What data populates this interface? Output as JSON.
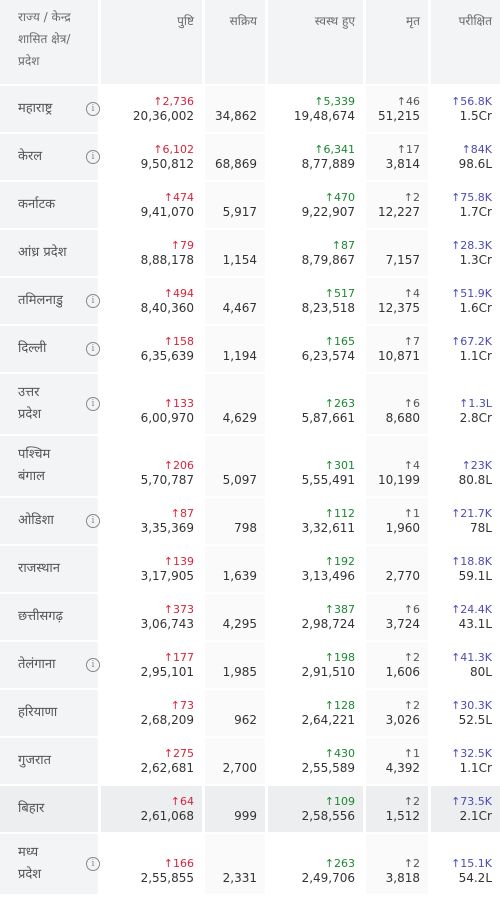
{
  "headers": {
    "state": [
      "राज्य / केन्द्र",
      "शासित क्षेत्र/",
      "प्रदेश"
    ],
    "confirmed": "पुष्टि",
    "active": "सक्रिय",
    "recovered": "स्वस्थ हुए",
    "deceased": "मृत",
    "tested": "परीक्षित"
  },
  "rows": [
    {
      "state": [
        "महाराष्ट्र"
      ],
      "info": true,
      "conf_delta": "↑2,736",
      "conf": "20,36,002",
      "active": "34,862",
      "rec_delta": "↑5,339",
      "rec": "19,48,674",
      "dec_delta": "↑46",
      "dec": "51,215",
      "test_delta": "↑56.8K",
      "test": "1.5Cr"
    },
    {
      "state": [
        "केरल"
      ],
      "info": true,
      "conf_delta": "↑6,102",
      "conf": "9,50,812",
      "active": "68,869",
      "rec_delta": "↑6,341",
      "rec": "8,77,889",
      "dec_delta": "↑17",
      "dec": "3,814",
      "test_delta": "↑84K",
      "test": "98.6L"
    },
    {
      "state": [
        "कर्नाटक"
      ],
      "info": false,
      "conf_delta": "↑474",
      "conf": "9,41,070",
      "active": "5,917",
      "rec_delta": "↑470",
      "rec": "9,22,907",
      "dec_delta": "↑2",
      "dec": "12,227",
      "test_delta": "↑75.8K",
      "test": "1.7Cr"
    },
    {
      "state": [
        "आंध्र प्रदेश"
      ],
      "info": false,
      "conf_delta": "↑79",
      "conf": "8,88,178",
      "active": "1,154",
      "rec_delta": "↑87",
      "rec": "8,79,867",
      "dec_delta": "",
      "dec": "7,157",
      "test_delta": "↑28.3K",
      "test": "1.3Cr"
    },
    {
      "state": [
        "तमिलनाडु"
      ],
      "info": true,
      "conf_delta": "↑494",
      "conf": "8,40,360",
      "active": "4,467",
      "rec_delta": "↑517",
      "rec": "8,23,518",
      "dec_delta": "↑4",
      "dec": "12,375",
      "test_delta": "↑51.9K",
      "test": "1.6Cr"
    },
    {
      "state": [
        "दिल्ली"
      ],
      "info": true,
      "conf_delta": "↑158",
      "conf": "6,35,639",
      "active": "1,194",
      "rec_delta": "↑165",
      "rec": "6,23,574",
      "dec_delta": "↑7",
      "dec": "10,871",
      "test_delta": "↑67.2K",
      "test": "1.1Cr"
    },
    {
      "state": [
        "उत्तर",
        "प्रदेश"
      ],
      "info": true,
      "conf_delta": "↑133",
      "conf": "6,00,970",
      "active": "4,629",
      "rec_delta": "↑263",
      "rec": "5,87,661",
      "dec_delta": "↑6",
      "dec": "8,680",
      "test_delta": "↑1.3L",
      "test": "2.8Cr"
    },
    {
      "state": [
        "पश्चिम",
        "बंगाल"
      ],
      "info": false,
      "conf_delta": "↑206",
      "conf": "5,70,787",
      "active": "5,097",
      "rec_delta": "↑301",
      "rec": "5,55,491",
      "dec_delta": "↑4",
      "dec": "10,199",
      "test_delta": "↑23K",
      "test": "80.8L"
    },
    {
      "state": [
        "ओडिशा"
      ],
      "info": true,
      "conf_delta": "↑87",
      "conf": "3,35,369",
      "active": "798",
      "rec_delta": "↑112",
      "rec": "3,32,611",
      "dec_delta": "↑1",
      "dec": "1,960",
      "test_delta": "↑21.7K",
      "test": "78L"
    },
    {
      "state": [
        "राजस्थान"
      ],
      "info": false,
      "conf_delta": "↑139",
      "conf": "3,17,905",
      "active": "1,639",
      "rec_delta": "↑192",
      "rec": "3,13,496",
      "dec_delta": "",
      "dec": "2,770",
      "test_delta": "↑18.8K",
      "test": "59.1L"
    },
    {
      "state": [
        "छत्तीसगढ़"
      ],
      "info": false,
      "conf_delta": "↑373",
      "conf": "3,06,743",
      "active": "4,295",
      "rec_delta": "↑387",
      "rec": "2,98,724",
      "dec_delta": "↑6",
      "dec": "3,724",
      "test_delta": "↑24.4K",
      "test": "43.1L"
    },
    {
      "state": [
        "तेलंगाना"
      ],
      "info": true,
      "conf_delta": "↑177",
      "conf": "2,95,101",
      "active": "1,985",
      "rec_delta": "↑198",
      "rec": "2,91,510",
      "dec_delta": "↑2",
      "dec": "1,606",
      "test_delta": "↑41.3K",
      "test": "80L"
    },
    {
      "state": [
        "हरियाणा"
      ],
      "info": false,
      "conf_delta": "↑73",
      "conf": "2,68,209",
      "active": "962",
      "rec_delta": "↑128",
      "rec": "2,64,221",
      "dec_delta": "↑2",
      "dec": "3,026",
      "test_delta": "↑30.3K",
      "test": "52.5L"
    },
    {
      "state": [
        "गुजरात"
      ],
      "info": false,
      "conf_delta": "↑275",
      "conf": "2,62,681",
      "active": "2,700",
      "rec_delta": "↑430",
      "rec": "2,55,589",
      "dec_delta": "↑1",
      "dec": "4,392",
      "test_delta": "↑32.5K",
      "test": "1.1Cr"
    },
    {
      "state": [
        "बिहार"
      ],
      "info": false,
      "highlight": true,
      "conf_delta": "↑64",
      "conf": "2,61,068",
      "active": "999",
      "rec_delta": "↑109",
      "rec": "2,58,556",
      "dec_delta": "↑2",
      "dec": "1,512",
      "test_delta": "↑73.5K",
      "test": "2.1Cr"
    },
    {
      "state": [
        "मध्य",
        "प्रदेश"
      ],
      "info": true,
      "conf_delta": "↑166",
      "conf": "2,55,855",
      "active": "2,331",
      "rec_delta": "↑263",
      "rec": "2,49,706",
      "dec_delta": "↑2",
      "dec": "3,818",
      "test_delta": "↑15.1K",
      "test": "54.2L"
    }
  ]
}
